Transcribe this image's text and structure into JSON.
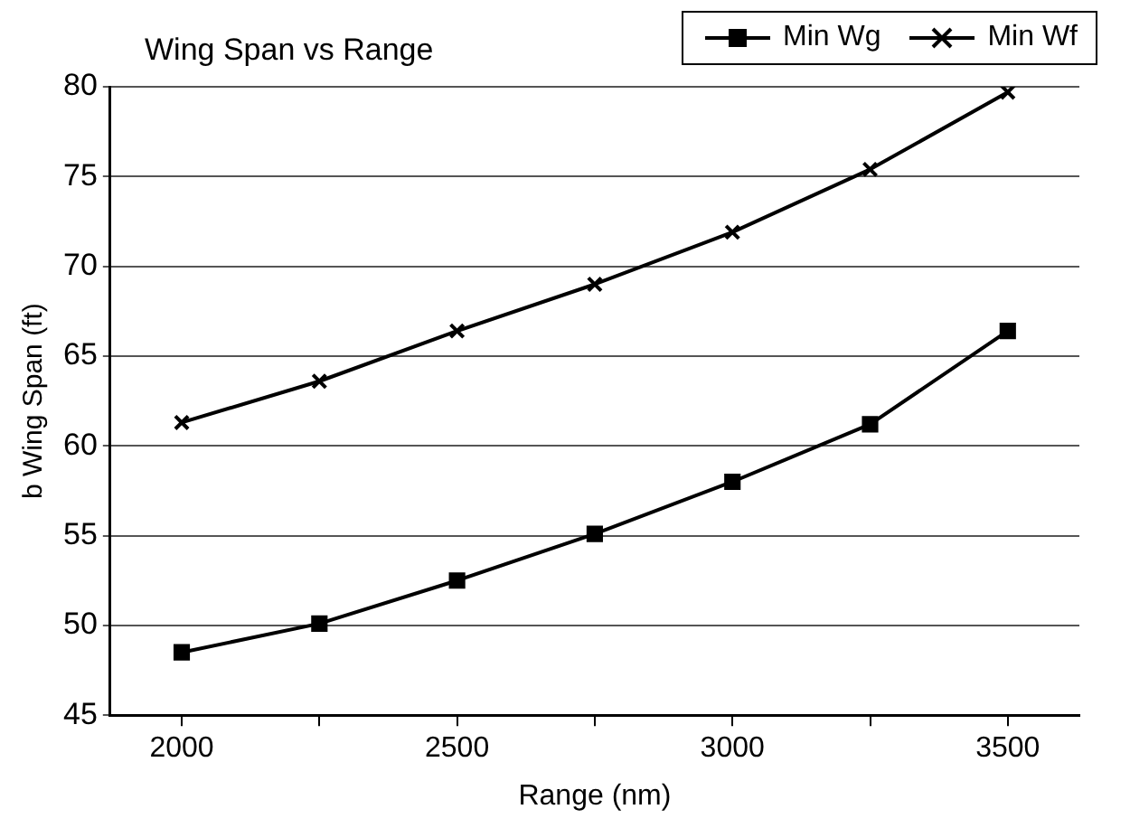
{
  "chart_data": {
    "type": "line",
    "title": "Wing Span vs Range",
    "xlabel": "Range (nm)",
    "ylabel": "b Wing Span (ft)",
    "x": [
      2000,
      2250,
      2500,
      2750,
      3000,
      3250,
      3500
    ],
    "series": [
      {
        "name": "Min Wg",
        "color": "#000000",
        "marker": "square",
        "values": [
          48.5,
          50.1,
          52.5,
          55.1,
          58.0,
          61.2,
          66.4
        ]
      },
      {
        "name": "Min Wf",
        "color": "#000000",
        "marker": "cross",
        "values": [
          61.3,
          63.6,
          66.4,
          69.0,
          71.9,
          75.4,
          79.7
        ]
      }
    ],
    "xlim": [
      1870,
      3630
    ],
    "xticks": [
      2000,
      {
        "value": 2250,
        "label": null
      },
      2500,
      {
        "value": 2750,
        "label": null
      },
      3000,
      {
        "value": 3250,
        "label": null
      },
      3500
    ],
    "ylim": [
      45,
      80
    ],
    "yticks": [
      45,
      50,
      55,
      60,
      65,
      70,
      75,
      80
    ],
    "grid": "y",
    "legend": "top right",
    "line_style": "solid"
  }
}
